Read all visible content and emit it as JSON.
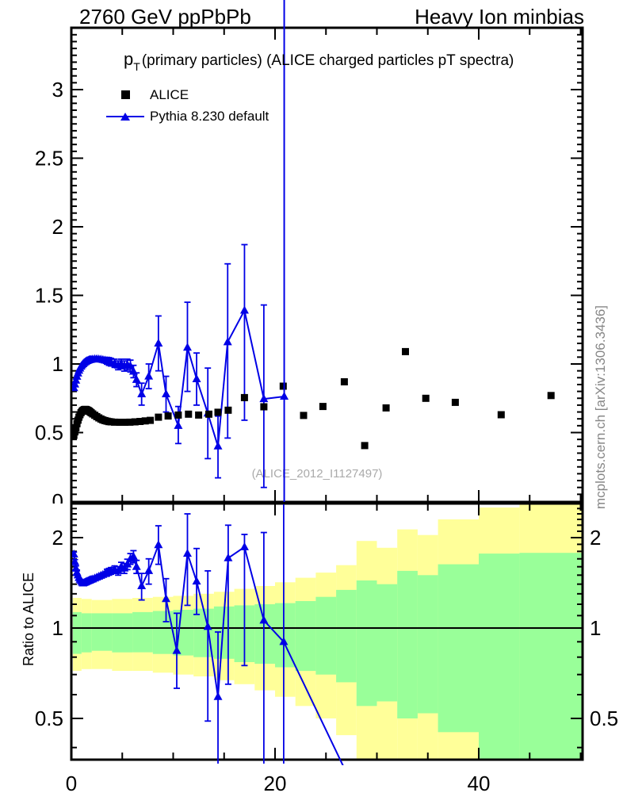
{
  "header": {
    "left": "2760 GeV ppPbPb",
    "right": "Heavy Ion minbias"
  },
  "title": {
    "p": "p",
    "sub": "T",
    "rest": "(primary particles) (ALICE charged particles pT spectra)"
  },
  "legend": {
    "alice_label": "ALICE",
    "pythia_label": "Pythia 8.230 default"
  },
  "watermark": "(ALICE_2012_I1127497)",
  "side_note": "mcplots.cern.ch [arXiv:1306.3436]",
  "ratio_ylabel": "Ratio to ALICE",
  "colors": {
    "pythia_blue": "#0000e6",
    "alice_black": "#000000",
    "band_green": "#99ff99",
    "band_yellow": "#ffff99",
    "watermark_gray": "#aaaaaa",
    "side_note_gray": "#878787"
  },
  "chart_data": {
    "type": "line",
    "title": "pT(primary particles) (ALICE charged particles pT spectra)",
    "xlabel": "",
    "ylabel_ratio": "Ratio to ALICE",
    "legend_entries": [
      "ALICE",
      "Pythia 8.230 default"
    ],
    "axes": {
      "x": {
        "min": 0,
        "max": 50.2,
        "minor_step": 5,
        "majors": [
          0,
          20,
          40
        ],
        "labels": [
          [
            "0",
            0
          ],
          [
            "20",
            20
          ],
          [
            "40",
            40
          ]
        ]
      },
      "main_y": {
        "min": 0,
        "max": 3.45,
        "minor_step": 0.05,
        "major_step": 0.5,
        "labels": [
          [
            "0",
            0
          ],
          [
            "0.5",
            0.5
          ],
          [
            "1",
            1
          ],
          [
            "1.5",
            1.5
          ],
          [
            "2",
            2
          ],
          [
            "2.5",
            2.5
          ],
          [
            "3",
            3
          ]
        ]
      },
      "ratio_y": {
        "scale": "log",
        "min": 0.365,
        "max": 2.6,
        "majors": [
          [
            "0.5",
            0.5
          ],
          [
            "1",
            1
          ],
          [
            "2",
            2
          ]
        ],
        "minors": [
          0.4,
          0.6,
          0.7,
          0.8,
          0.9,
          1.1,
          1.2,
          1.3,
          1.4,
          1.5,
          1.6,
          1.7,
          1.8,
          1.9,
          2.1,
          2.2,
          2.3,
          2.4,
          2.5
        ]
      }
    },
    "series": {
      "alice": {
        "name": "ALICE",
        "marker": "square",
        "points": [
          [
            0.25,
            0.48
          ],
          [
            0.35,
            0.505
          ],
          [
            0.45,
            0.535
          ],
          [
            0.55,
            0.565
          ],
          [
            0.65,
            0.59
          ],
          [
            0.75,
            0.612
          ],
          [
            0.85,
            0.63
          ],
          [
            0.95,
            0.645
          ],
          [
            1.05,
            0.655
          ],
          [
            1.15,
            0.662
          ],
          [
            1.25,
            0.667
          ],
          [
            1.35,
            0.669
          ],
          [
            1.45,
            0.668
          ],
          [
            1.55,
            0.665
          ],
          [
            1.65,
            0.661
          ],
          [
            1.75,
            0.656
          ],
          [
            1.85,
            0.65
          ],
          [
            1.95,
            0.644
          ],
          [
            2.1,
            0.636
          ],
          [
            2.3,
            0.626
          ],
          [
            2.5,
            0.616
          ],
          [
            2.7,
            0.607
          ],
          [
            2.9,
            0.599
          ],
          [
            3.1,
            0.592
          ],
          [
            3.3,
            0.587
          ],
          [
            3.5,
            0.583
          ],
          [
            3.7,
            0.58
          ],
          [
            3.9,
            0.578
          ],
          [
            4.25,
            0.576
          ],
          [
            4.75,
            0.575
          ],
          [
            5.25,
            0.575
          ],
          [
            5.75,
            0.576
          ],
          [
            6.25,
            0.578
          ],
          [
            6.75,
            0.581
          ],
          [
            7.25,
            0.585
          ],
          [
            7.75,
            0.589
          ],
          [
            8.55,
            0.612
          ],
          [
            9.5,
            0.621
          ],
          [
            10.5,
            0.628
          ],
          [
            11.5,
            0.634
          ],
          [
            12.5,
            0.628
          ],
          [
            13.5,
            0.634
          ],
          [
            14.4,
            0.648
          ],
          [
            15.4,
            0.663
          ],
          [
            17.0,
            0.755
          ],
          [
            18.9,
            0.688
          ],
          [
            20.8,
            0.838
          ],
          [
            22.8,
            0.625
          ],
          [
            24.7,
            0.69
          ],
          [
            26.8,
            0.87
          ],
          [
            28.8,
            0.405
          ],
          [
            30.9,
            0.68
          ],
          [
            32.8,
            1.09
          ],
          [
            34.8,
            0.75
          ],
          [
            37.7,
            0.72
          ],
          [
            42.2,
            0.63
          ],
          [
            47.1,
            0.77
          ]
        ]
      },
      "pythia_main": {
        "name": "Pythia 8.230 default",
        "marker": "triangle",
        "points": [
          [
            0.25,
            0.825
          ],
          [
            0.35,
            0.852
          ],
          [
            0.45,
            0.88
          ],
          [
            0.55,
            0.908
          ],
          [
            0.65,
            0.932
          ],
          [
            0.75,
            0.952
          ],
          [
            0.85,
            0.968
          ],
          [
            0.95,
            0.982
          ],
          [
            1.05,
            0.992
          ],
          [
            1.15,
            1.0
          ],
          [
            1.25,
            1.008
          ],
          [
            1.35,
            1.014
          ],
          [
            1.45,
            1.019
          ],
          [
            1.55,
            1.023
          ],
          [
            1.65,
            1.026
          ],
          [
            1.75,
            1.029
          ],
          [
            1.85,
            1.031
          ],
          [
            1.95,
            1.032
          ],
          [
            2.1,
            1.034
          ],
          [
            2.3,
            1.036
          ],
          [
            2.5,
            1.036
          ],
          [
            2.7,
            1.035
          ],
          [
            2.9,
            1.033
          ],
          [
            3.1,
            1.03
          ],
          [
            3.3,
            1.027
          ],
          [
            3.5,
            1.023,
            0.998,
            1.048
          ],
          [
            3.7,
            1.018,
            0.99,
            1.046
          ],
          [
            3.9,
            1.013,
            0.985,
            1.041
          ],
          [
            4.25,
            1.005,
            0.975,
            1.035
          ],
          [
            4.6,
            0.99,
            0.958,
            1.022
          ],
          [
            4.9,
            1.0,
            0.965,
            1.035
          ],
          [
            5.2,
            0.985,
            0.948,
            1.022
          ],
          [
            5.5,
            0.995,
            0.955,
            1.035
          ],
          [
            5.8,
            0.985,
            0.942,
            1.028
          ],
          [
            6.1,
            0.945,
            0.9,
            0.99
          ],
          [
            6.4,
            0.885,
            0.835,
            0.935
          ],
          [
            6.9,
            0.78,
            0.7,
            0.86
          ],
          [
            7.6,
            0.91,
            0.82,
            1.0
          ],
          [
            8.55,
            1.15,
            0.95,
            1.35
          ],
          [
            9.3,
            0.78,
            0.65,
            0.91
          ],
          [
            10.5,
            0.55,
            0.42,
            0.69
          ],
          [
            11.4,
            1.12,
            0.8,
            1.45
          ],
          [
            12.3,
            0.89,
            0.7,
            1.08
          ],
          [
            13.4,
            0.64,
            0.31,
            0.97
          ],
          [
            14.4,
            0.4,
            0.17,
            0.62
          ],
          [
            15.35,
            1.16,
            0.46,
            1.73
          ],
          [
            17.0,
            1.39,
            0.59,
            1.87
          ],
          [
            18.9,
            0.745,
            0.1,
            1.43
          ],
          [
            20.9,
            0.763,
            -9,
            9
          ]
        ]
      },
      "ratio": {
        "name": "Pythia 8.230 default / ALICE",
        "marker": "triangle",
        "points": [
          [
            0.25,
            1.76,
            1.73,
            1.79
          ],
          [
            0.35,
            1.66,
            1.63,
            1.69
          ],
          [
            0.45,
            1.58,
            1.55,
            1.61
          ],
          [
            0.55,
            1.53,
            1.5,
            1.56
          ],
          [
            0.65,
            1.5
          ],
          [
            0.75,
            1.47
          ],
          [
            0.85,
            1.45
          ],
          [
            0.95,
            1.435
          ],
          [
            1.05,
            1.42
          ],
          [
            1.15,
            1.41
          ],
          [
            1.25,
            1.415
          ],
          [
            1.35,
            1.42
          ],
          [
            1.45,
            1.425
          ],
          [
            1.55,
            1.43
          ],
          [
            1.65,
            1.435
          ],
          [
            1.75,
            1.44
          ],
          [
            1.85,
            1.445
          ],
          [
            1.95,
            1.45
          ],
          [
            2.1,
            1.455
          ],
          [
            2.3,
            1.465
          ],
          [
            2.5,
            1.475
          ],
          [
            2.7,
            1.485
          ],
          [
            2.9,
            1.495
          ],
          [
            3.1,
            1.505
          ],
          [
            3.3,
            1.515
          ],
          [
            3.5,
            1.53,
            1.49,
            1.57
          ],
          [
            3.7,
            1.54,
            1.5,
            1.58
          ],
          [
            3.9,
            1.55,
            1.51,
            1.59
          ],
          [
            4.25,
            1.565,
            1.52,
            1.61
          ],
          [
            4.6,
            1.55,
            1.5,
            1.6
          ],
          [
            4.9,
            1.6,
            1.545,
            1.655
          ],
          [
            5.2,
            1.58,
            1.52,
            1.64
          ],
          [
            5.5,
            1.63,
            1.565,
            1.695
          ],
          [
            5.8,
            1.7,
            1.63,
            1.77
          ],
          [
            6.1,
            1.73,
            1.65,
            1.81
          ],
          [
            6.4,
            1.6,
            1.52,
            1.68
          ],
          [
            6.9,
            1.38,
            1.24,
            1.52
          ],
          [
            7.6,
            1.55,
            1.4,
            1.7
          ],
          [
            8.55,
            1.89,
            1.63,
            2.19
          ],
          [
            9.3,
            1.25,
            1.05,
            1.46
          ],
          [
            10.35,
            0.84,
            0.63,
            1.12
          ],
          [
            11.4,
            1.77,
            1.19,
            2.4
          ],
          [
            12.3,
            1.43,
            1.11,
            1.84
          ],
          [
            13.4,
            1.01,
            0.49,
            1.55
          ],
          [
            14.4,
            0.59,
            0.3,
            0.97
          ],
          [
            15.4,
            1.71,
            0.65,
            2.2
          ],
          [
            17.0,
            1.86,
            0.75,
            2.05
          ],
          [
            18.9,
            1.06,
            0.28,
            2.08
          ],
          [
            20.85,
            0.9,
            0.2,
            2.7
          ]
        ],
        "line_end": [
          27.8,
          0.29
        ]
      }
    },
    "bands": [
      [
        0.15,
        1,
        0.72,
        1.26,
        0.82,
        1.13
      ],
      [
        1,
        2,
        0.73,
        1.25,
        0.83,
        1.12
      ],
      [
        2,
        4,
        0.73,
        1.24,
        0.84,
        1.12
      ],
      [
        4,
        6,
        0.72,
        1.25,
        0.83,
        1.12
      ],
      [
        6,
        8,
        0.72,
        1.26,
        0.83,
        1.13
      ],
      [
        8,
        10,
        0.71,
        1.27,
        0.82,
        1.14
      ],
      [
        10,
        12,
        0.7,
        1.28,
        0.81,
        1.15
      ],
      [
        12,
        14,
        0.69,
        1.3,
        0.8,
        1.16
      ],
      [
        14,
        16,
        0.67,
        1.32,
        0.79,
        1.18
      ],
      [
        16,
        18,
        0.65,
        1.35,
        0.77,
        1.19
      ],
      [
        18,
        20,
        0.62,
        1.38,
        0.76,
        1.2
      ],
      [
        20,
        22,
        0.59,
        1.42,
        0.74,
        1.21
      ],
      [
        22,
        24,
        0.55,
        1.47,
        0.72,
        1.23
      ],
      [
        24,
        26,
        0.5,
        1.53,
        0.7,
        1.27
      ],
      [
        26,
        28,
        0.44,
        1.62,
        0.66,
        1.34
      ],
      [
        28,
        30,
        0.34,
        1.95,
        0.55,
        1.44
      ],
      [
        30,
        32,
        0.35,
        1.85,
        0.57,
        1.4
      ],
      [
        32,
        34,
        0.3,
        2.13,
        0.5,
        1.55
      ],
      [
        34,
        36,
        0.32,
        2.04,
        0.52,
        1.5
      ],
      [
        36,
        40,
        0.27,
        2.3,
        0.45,
        1.63
      ],
      [
        40,
        44,
        0.21,
        2.52,
        0.32,
        1.77
      ],
      [
        44,
        50.2,
        0.19,
        2.58,
        0.3,
        1.78
      ]
    ],
    "reference_line_ratio": 1.0
  }
}
